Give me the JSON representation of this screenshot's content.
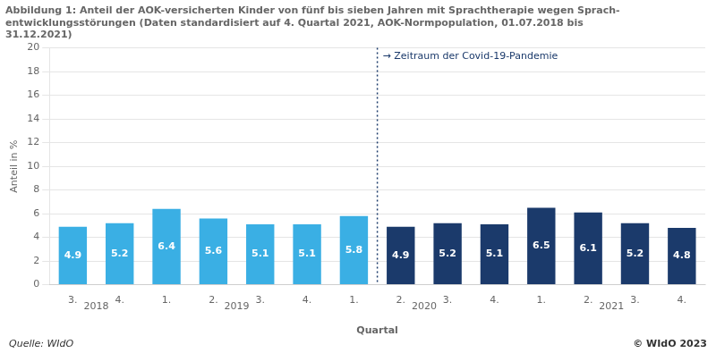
{
  "chart_data": {
    "type": "bar",
    "title": [
      "Abbildung 1: Anteil der AOK-versicherten Kinder von fünf bis sieben Jahren mit Sprachtherapie wegen Sprach-",
      "entwicklungsstörungen (Daten standardisiert auf 4. Quartal 2021, AOK-Normpopulation, 01.07.2018 bis",
      "31.12.2021)"
    ],
    "ylabel": "Anteil in %",
    "xlabel": "Quartal",
    "categories": [
      "3.",
      "4.",
      "1.",
      "2.",
      "3.",
      "4.",
      "1.",
      "2.",
      "3.",
      "4.",
      "1.",
      "2.",
      "3.",
      "4."
    ],
    "values": [
      4.9,
      5.2,
      6.4,
      5.6,
      5.1,
      5.1,
      5.8,
      4.9,
      5.2,
      5.1,
      6.5,
      6.1,
      5.2,
      4.8
    ],
    "colors": [
      "#3AAFE4",
      "#3AAFE4",
      "#3AAFE4",
      "#3AAFE4",
      "#3AAFE4",
      "#3AAFE4",
      "#3AAFE4",
      "#1B3A6B",
      "#1B3A6B",
      "#1B3A6B",
      "#1B3A6B",
      "#1B3A6B",
      "#1B3A6B",
      "#1B3A6B"
    ],
    "data_labels": true,
    "groups": [
      {
        "label": "2018",
        "indices": [
          0,
          1
        ]
      },
      {
        "label": "2019",
        "indices": [
          2,
          3,
          4,
          5
        ]
      },
      {
        "label": "2020",
        "indices": [
          6,
          7,
          8,
          9
        ]
      },
      {
        "label": "2021",
        "indices": [
          10,
          11,
          12,
          13
        ]
      }
    ],
    "annotation": {
      "text": "→ Zeitraum der Covid-19-Pandemie",
      "x": 6.5,
      "line_style": "dotted",
      "color": "#1B3A6B"
    },
    "source": "Quelle: WIdO",
    "copyright": "© WIdO 2023",
    "ylim": [
      0,
      20
    ],
    "yticks": [
      0,
      2,
      4,
      6,
      8,
      10,
      12,
      14,
      16,
      18,
      20
    ],
    "grid": true
  }
}
